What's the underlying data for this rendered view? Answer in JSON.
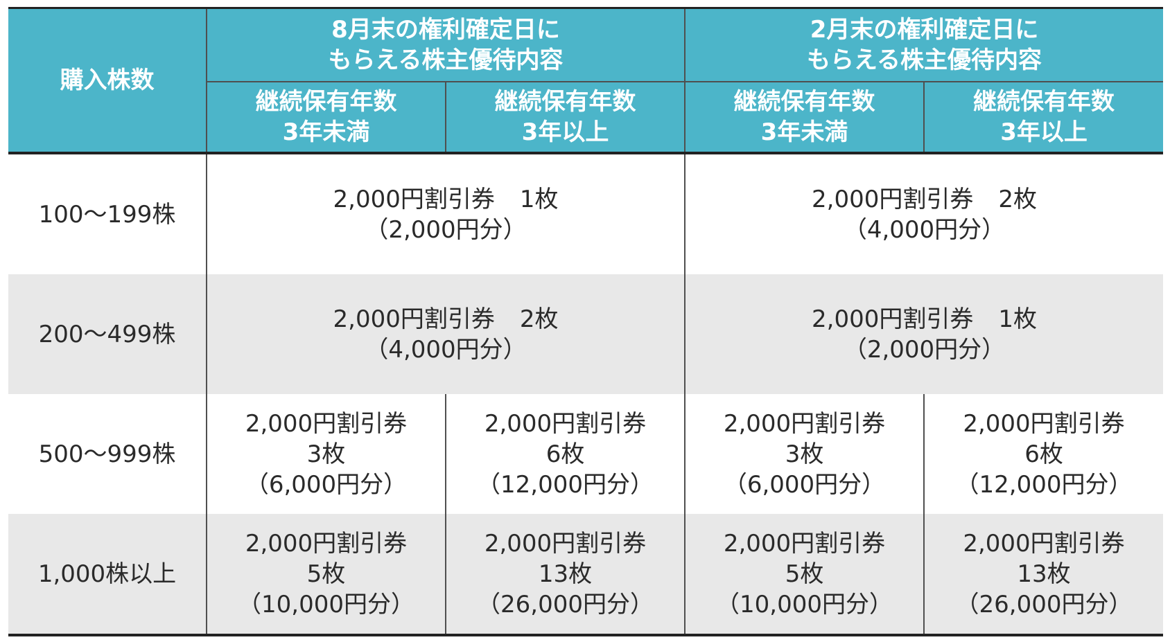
{
  "header": {
    "shares": "購入株数",
    "groups": [
      {
        "line1": "8月末の権利確定日に",
        "line2": "もらえる株主優待内容"
      },
      {
        "line1": "2月末の権利確定日に",
        "line2": "もらえる株主優待内容"
      }
    ],
    "subcols": [
      {
        "line1": "継続保有年数",
        "line2": "3年未満"
      },
      {
        "line1": "継続保有年数",
        "line2": "3年以上"
      },
      {
        "line1": "継続保有年数",
        "line2": "3年未満"
      },
      {
        "line1": "継続保有年数",
        "line2": "3年以上"
      }
    ]
  },
  "rows": [
    {
      "shares": "100〜199株",
      "aug": {
        "coupon": "2,000円割引券",
        "count": "1枚",
        "total": "（2,000円分）"
      },
      "feb": {
        "coupon": "2,000円割引券",
        "count": "2枚",
        "total": "（4,000円分）"
      }
    },
    {
      "shares": "200〜499株",
      "aug": {
        "coupon": "2,000円割引券",
        "count": "2枚",
        "total": "（4,000円分）"
      },
      "feb": {
        "coupon": "2,000円割引券",
        "count": "1枚",
        "total": "（2,000円分）"
      }
    },
    {
      "shares": "500〜999株",
      "cells": [
        {
          "coupon": "2,000円割引券",
          "count": "3枚",
          "total": "（6,000円分）"
        },
        {
          "coupon": "2,000円割引券",
          "count": "6枚",
          "total": "（12,000円分）"
        },
        {
          "coupon": "2,000円割引券",
          "count": "3枚",
          "total": "（6,000円分）"
        },
        {
          "coupon": "2,000円割引券",
          "count": "6枚",
          "total": "（12,000円分）"
        }
      ]
    },
    {
      "shares": "1,000株以上",
      "cells": [
        {
          "coupon": "2,000円割引券",
          "count": "5枚",
          "total": "（10,000円分）"
        },
        {
          "coupon": "2,000円割引券",
          "count": "13枚",
          "total": "（26,000円分）"
        },
        {
          "coupon": "2,000円割引券",
          "count": "5枚",
          "total": "（10,000円分）"
        },
        {
          "coupon": "2,000円割引券",
          "count": "13枚",
          "total": "（26,000円分）"
        }
      ]
    }
  ],
  "colors": {
    "header_bg": "#4cb5c9",
    "header_text": "#ffffff",
    "alt_row_bg": "#e8e8e8",
    "text": "#2a2a2a"
  }
}
